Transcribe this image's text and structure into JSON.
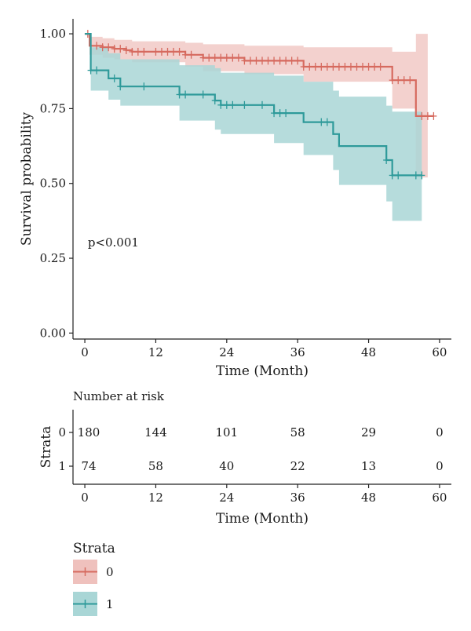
{
  "chart_data": [
    {
      "type": "line",
      "subtype": "kaplan-meier survival curve with confidence bands",
      "xlabel": "Time (Month)",
      "ylabel": "Survival probability",
      "xlim": [
        -2,
        62
      ],
      "ylim": [
        -0.02,
        1.05
      ],
      "x_ticks": [
        0,
        12,
        24,
        36,
        48,
        60
      ],
      "y_ticks": [
        0.0,
        0.25,
        0.5,
        0.75,
        1.0
      ],
      "y_tick_labels": [
        "0.00",
        "0.25",
        "0.50",
        "0.75",
        "1.00"
      ],
      "annotation": "p<0.001",
      "grid": false,
      "series": [
        {
          "name": "0",
          "color": "#d66a5f",
          "band_color": "#efc1bd",
          "steps": [
            [
              0,
              1.0
            ],
            [
              0.8,
              0.96
            ],
            [
              3,
              0.955
            ],
            [
              5,
              0.95
            ],
            [
              7,
              0.945
            ],
            [
              8,
              0.94
            ],
            [
              17,
              0.93
            ],
            [
              20,
              0.92
            ],
            [
              27,
              0.91
            ],
            [
              37,
              0.89
            ],
            [
              52,
              0.845
            ],
            [
              56,
              0.725
            ],
            [
              59,
              0.725
            ]
          ],
          "band": [
            [
              0,
              1.0,
              1.0
            ],
            [
              0.8,
              0.93,
              0.99
            ],
            [
              3,
              0.92,
              0.985
            ],
            [
              5,
              0.915,
              0.98
            ],
            [
              8,
              0.905,
              0.975
            ],
            [
              17,
              0.89,
              0.97
            ],
            [
              20,
              0.875,
              0.965
            ],
            [
              27,
              0.865,
              0.96
            ],
            [
              37,
              0.84,
              0.955
            ],
            [
              52,
              0.75,
              0.94
            ],
            [
              56,
              0.52,
              1.0
            ],
            [
              58,
              0.52,
              1.0
            ]
          ],
          "censor_x": [
            0.5,
            2,
            3,
            4,
            5,
            6,
            7,
            8,
            9,
            10,
            12,
            13,
            14,
            15,
            16,
            17,
            18,
            20,
            21,
            22,
            23,
            24,
            25,
            26,
            27,
            28,
            29,
            30,
            31,
            32,
            33,
            34,
            35,
            36,
            37,
            38,
            39,
            40,
            41,
            42,
            43,
            44,
            45,
            46,
            47,
            48,
            49,
            50,
            52,
            53,
            54,
            55,
            57,
            58,
            59
          ]
        },
        {
          "name": "1",
          "color": "#2e9a9a",
          "band_color": "#a9d6d6",
          "steps": [
            [
              0,
              1.0
            ],
            [
              1,
              0.878
            ],
            [
              4,
              0.851
            ],
            [
              6,
              0.824
            ],
            [
              16,
              0.797
            ],
            [
              22,
              0.777
            ],
            [
              23,
              0.762
            ],
            [
              32,
              0.735
            ],
            [
              37,
              0.705
            ],
            [
              42,
              0.665
            ],
            [
              43,
              0.625
            ],
            [
              51,
              0.578
            ],
            [
              52,
              0.527
            ],
            [
              57,
              0.527
            ]
          ],
          "band": [
            [
              0,
              1.0,
              1.0
            ],
            [
              1,
              0.81,
              0.955
            ],
            [
              4,
              0.78,
              0.935
            ],
            [
              6,
              0.76,
              0.915
            ],
            [
              16,
              0.71,
              0.895
            ],
            [
              22,
              0.68,
              0.885
            ],
            [
              23,
              0.665,
              0.87
            ],
            [
              32,
              0.635,
              0.86
            ],
            [
              37,
              0.595,
              0.84
            ],
            [
              42,
              0.545,
              0.81
            ],
            [
              43,
              0.495,
              0.79
            ],
            [
              51,
              0.44,
              0.76
            ],
            [
              52,
              0.375,
              0.74
            ],
            [
              57,
              0.375,
              0.74
            ]
          ],
          "censor_x": [
            1,
            2,
            5,
            6,
            10,
            16,
            17,
            20,
            22,
            23,
            24,
            25,
            27,
            30,
            32,
            33,
            34,
            40,
            41,
            51,
            52,
            53,
            56,
            57
          ]
        }
      ]
    },
    {
      "type": "table",
      "title": "Number at risk",
      "xlabel": "Time (Month)",
      "ylabel": "Strata",
      "x_ticks": [
        0,
        12,
        24,
        36,
        48,
        60
      ],
      "rows": [
        {
          "stratum": "0",
          "values": [
            180,
            144,
            101,
            58,
            29,
            0
          ]
        },
        {
          "stratum": "1",
          "values": [
            74,
            58,
            40,
            22,
            13,
            0
          ]
        }
      ]
    }
  ],
  "legend": {
    "title": "Strata",
    "placement": "bottom-left",
    "entries": [
      {
        "label": "0",
        "color": "#d66a5f",
        "band_color": "#efc1bd"
      },
      {
        "label": "1",
        "color": "#2e9a9a",
        "band_color": "#a9d6d6"
      }
    ]
  }
}
